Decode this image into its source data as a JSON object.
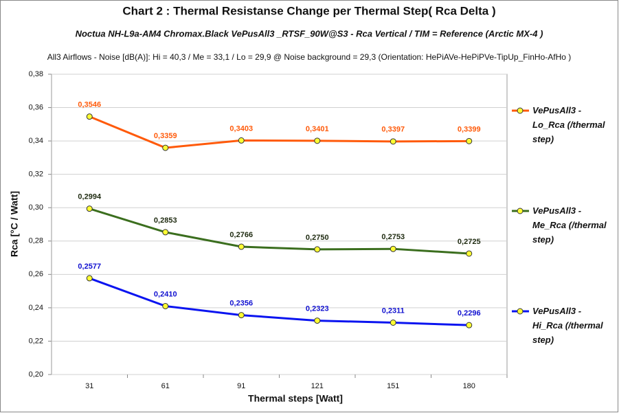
{
  "chart_data": {
    "type": "line",
    "title": "Chart 2 :  Thermal  Resistanse  Change  per  Thermal  Step( Rca  Delta )",
    "subtitle": "Noctua NH-L9a-AM4 Chromax.Black  VePusAll3 _RTSF_90W@S3  -  Rca Vertical    /  TIM =  Reference   (Arctic MX-4 )",
    "note": "All3 Airflows  -  Noise [dB(A)]: Hi = 40,3  / Me = 33,1  / Lo = 29,9 @ Noise background = 29,3     (Orientation: HePiAVe-HePiPVe-TipUp_FinHo-AfHo )",
    "x_label": "Thermal steps  [Watt]",
    "y_label": "Rca  [°C / Watt]",
    "categories": [
      "31",
      "61",
      "91",
      "121",
      "151",
      "180"
    ],
    "ylim": [
      0.2,
      0.38
    ],
    "yticks": [
      {
        "value": 0.2,
        "label": "0,20"
      },
      {
        "value": 0.22,
        "label": "0,22"
      },
      {
        "value": 0.24,
        "label": "0,24"
      },
      {
        "value": 0.26,
        "label": "0,26"
      },
      {
        "value": 0.28,
        "label": "0,28"
      },
      {
        "value": 0.3,
        "label": "0,30"
      },
      {
        "value": 0.32,
        "label": "0,32"
      },
      {
        "value": 0.34,
        "label": "0,34"
      },
      {
        "value": 0.36,
        "label": "0,36"
      },
      {
        "value": 0.38,
        "label": "0,38"
      }
    ],
    "grid": true,
    "legend": "right",
    "series": [
      {
        "name": "VePusAll3 - Lo_Rca (/thermal step)",
        "color": "#ff5a0a",
        "label_color": "#ff5a0a",
        "values": [
          0.3546,
          0.3359,
          0.3403,
          0.3401,
          0.3397,
          0.3399
        ],
        "value_labels": [
          "0,3546",
          "0,3359",
          "0,3403",
          "0,3401",
          "0,3397",
          "0,3399"
        ]
      },
      {
        "name": "VePusAll3 - Me_Rca (/thermal step)",
        "color": "#3b6e1e",
        "label_color": "#1e2a10",
        "values": [
          0.2994,
          0.2853,
          0.2766,
          0.275,
          0.2753,
          0.2725
        ],
        "value_labels": [
          "0,2994",
          "0,2853",
          "0,2766",
          "0,2750",
          "0,2753",
          "0,2725"
        ]
      },
      {
        "name": "VePusAll3 - Hi_Rca (/thermal step)",
        "color": "#0a14f0",
        "label_color": "#1010d0",
        "values": [
          0.2577,
          0.241,
          0.2356,
          0.2323,
          0.2311,
          0.2296
        ],
        "value_labels": [
          "0,2577",
          "0,2410",
          "0,2356",
          "0,2323",
          "0,2311",
          "0,2296"
        ]
      }
    ]
  }
}
